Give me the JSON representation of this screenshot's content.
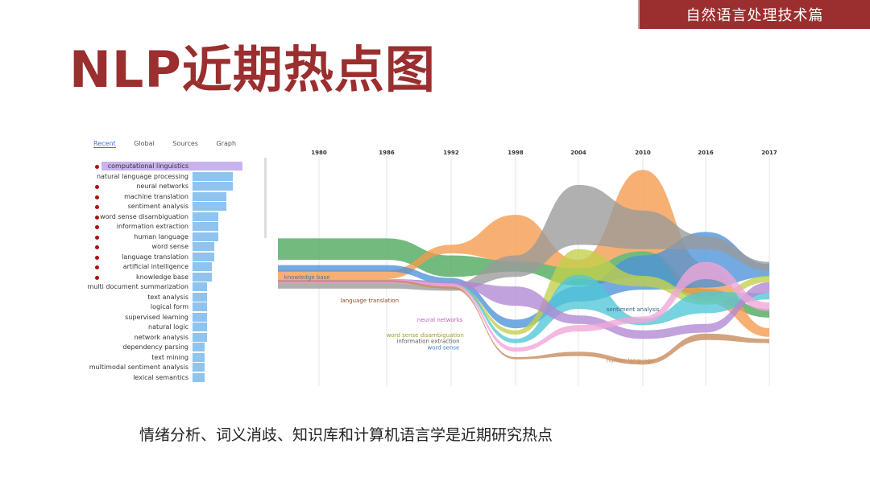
{
  "header": {
    "banner": "自然语言处理技术篇",
    "title": "NLP近期热点图"
  },
  "tabs": [
    {
      "label": "Recent",
      "active": true
    },
    {
      "label": "Global",
      "active": false
    },
    {
      "label": "Sources",
      "active": false
    },
    {
      "label": "Graph",
      "active": false
    }
  ],
  "ranking": [
    {
      "label": "computational linguistics",
      "value": 100,
      "dot": true,
      "highlight": true
    },
    {
      "label": "natural language processing",
      "value": 81,
      "dot": false
    },
    {
      "label": "neural networks",
      "value": 81,
      "dot": true
    },
    {
      "label": "machine translation",
      "value": 67,
      "dot": true
    },
    {
      "label": "sentiment analysis",
      "value": 67,
      "dot": true
    },
    {
      "label": "word sense disambiguation",
      "value": 52,
      "dot": true
    },
    {
      "label": "information extraction",
      "value": 52,
      "dot": true
    },
    {
      "label": "human language",
      "value": 52,
      "dot": true
    },
    {
      "label": "word sense",
      "value": 43,
      "dot": true
    },
    {
      "label": "language translation",
      "value": 43,
      "dot": true
    },
    {
      "label": "artificial intelligence",
      "value": 38,
      "dot": true
    },
    {
      "label": "knowledge base",
      "value": 38,
      "dot": true
    },
    {
      "label": "multi document summarization",
      "value": 29,
      "dot": false
    },
    {
      "label": "text analysis",
      "value": 29,
      "dot": false
    },
    {
      "label": "logical form",
      "value": 29,
      "dot": false
    },
    {
      "label": "supervised learning",
      "value": 29,
      "dot": false
    },
    {
      "label": "natural logic",
      "value": 29,
      "dot": false
    },
    {
      "label": "network analysis",
      "value": 29,
      "dot": false
    },
    {
      "label": "dependency parsing",
      "value": 24,
      "dot": false
    },
    {
      "label": "text mining",
      "value": 24,
      "dot": false
    },
    {
      "label": "multimodal sentiment analysis",
      "value": 24,
      "dot": false
    },
    {
      "label": "lexical semantics",
      "value": 24,
      "dot": false
    }
  ],
  "chart_data": {
    "type": "area",
    "x": [
      "1980",
      "1986",
      "1992",
      "1998",
      "2004",
      "2010",
      "2016",
      "2017"
    ],
    "series": [
      {
        "name": "knowledge base",
        "color": "#4aa65a",
        "center": [
          0.45,
          0.45,
          0.53,
          0.53,
          0.58,
          0.52,
          0.66,
          0.75
        ],
        "thickness": [
          0.1,
          0.1,
          0.1,
          0.05,
          0.08,
          0.12,
          0.05,
          0.04
        ]
      },
      {
        "name": "language translation",
        "color": "#f59a4b",
        "center": [
          0.57,
          0.57,
          0.45,
          0.4,
          0.52,
          0.27,
          0.61,
          0.84
        ],
        "thickness": [
          0.04,
          0.04,
          0.04,
          0.22,
          0.04,
          0.38,
          0.18,
          0.04
        ]
      },
      {
        "name": "neural networks",
        "color": "#4b92d9",
        "center": [
          0.54,
          0.54,
          0.6,
          0.8,
          0.66,
          0.56,
          0.5,
          0.55
        ],
        "thickness": [
          0.03,
          0.03,
          0.03,
          0.04,
          0.07,
          0.16,
          0.26,
          0.06
        ]
      },
      {
        "name": "",
        "color": "#9a9a9a",
        "center": [
          0.62,
          0.62,
          0.63,
          0.53,
          0.29,
          0.36,
          0.42,
          0.53
        ],
        "thickness": [
          0.03,
          0.03,
          0.03,
          0.1,
          0.28,
          0.18,
          0.06,
          0.04
        ]
      },
      {
        "name": "word sense disambiguation",
        "color": "#c2cf4a",
        "center": [
          0.6,
          0.6,
          0.62,
          0.84,
          0.52,
          0.6,
          0.69,
          0.59
        ],
        "thickness": [
          0.02,
          0.02,
          0.02,
          0.02,
          0.14,
          0.05,
          0.04,
          0.03
        ]
      },
      {
        "name": "sentiment analysis",
        "color": "#4fc7d6",
        "center": [
          0.6,
          0.6,
          0.61,
          0.88,
          0.65,
          0.79,
          0.7,
          0.67
        ],
        "thickness": [
          0.02,
          0.02,
          0.02,
          0.02,
          0.16,
          0.03,
          0.1,
          0.03
        ]
      },
      {
        "name": "",
        "color": "#b188d3",
        "center": [
          0.6,
          0.6,
          0.61,
          0.67,
          0.78,
          0.85,
          0.82,
          0.63
        ],
        "thickness": [
          0.02,
          0.02,
          0.02,
          0.09,
          0.04,
          0.04,
          0.04,
          0.05
        ]
      },
      {
        "name": "",
        "color": "#f1a5d8",
        "center": [
          0.6,
          0.6,
          0.62,
          0.92,
          0.82,
          0.78,
          0.55,
          0.72
        ],
        "thickness": [
          0.02,
          0.02,
          0.02,
          0.02,
          0.03,
          0.03,
          0.08,
          0.04
        ]
      },
      {
        "name": "human language",
        "color": "#c58a5a",
        "center": [
          0.6,
          0.6,
          0.63,
          0.96,
          0.94,
          0.98,
          0.86,
          0.88
        ],
        "thickness": [
          0.01,
          0.01,
          0.01,
          0.01,
          0.02,
          0.02,
          0.03,
          0.02
        ]
      }
    ],
    "annotations": [
      {
        "text": "knowledge base",
        "x": 0.02,
        "y": 0.59,
        "color": "#4b6cb0"
      },
      {
        "text": "language translation",
        "x": 0.13,
        "y": 0.7,
        "color": "#8a4a2a"
      },
      {
        "text": "neural networks",
        "x": 0.28,
        "y": 0.79,
        "color": "#c060b0"
      },
      {
        "text": "word sense disambiguation",
        "x": 0.22,
        "y": 0.86,
        "color": "#9ca020"
      },
      {
        "text": "information extraction",
        "x": 0.24,
        "y": 0.89,
        "color": "#555555"
      },
      {
        "text": "word sense",
        "x": 0.3,
        "y": 0.92,
        "color": "#3a80c0"
      },
      {
        "text": "sentiment analysis",
        "x": 0.65,
        "y": 0.74,
        "color": "#336688"
      },
      {
        "text": "human language",
        "x": 0.65,
        "y": 0.98,
        "color": "#c58a5a"
      }
    ]
  },
  "caption": "情绪分析、词义消歧、知识库和计算机语言学是近期研究热点"
}
